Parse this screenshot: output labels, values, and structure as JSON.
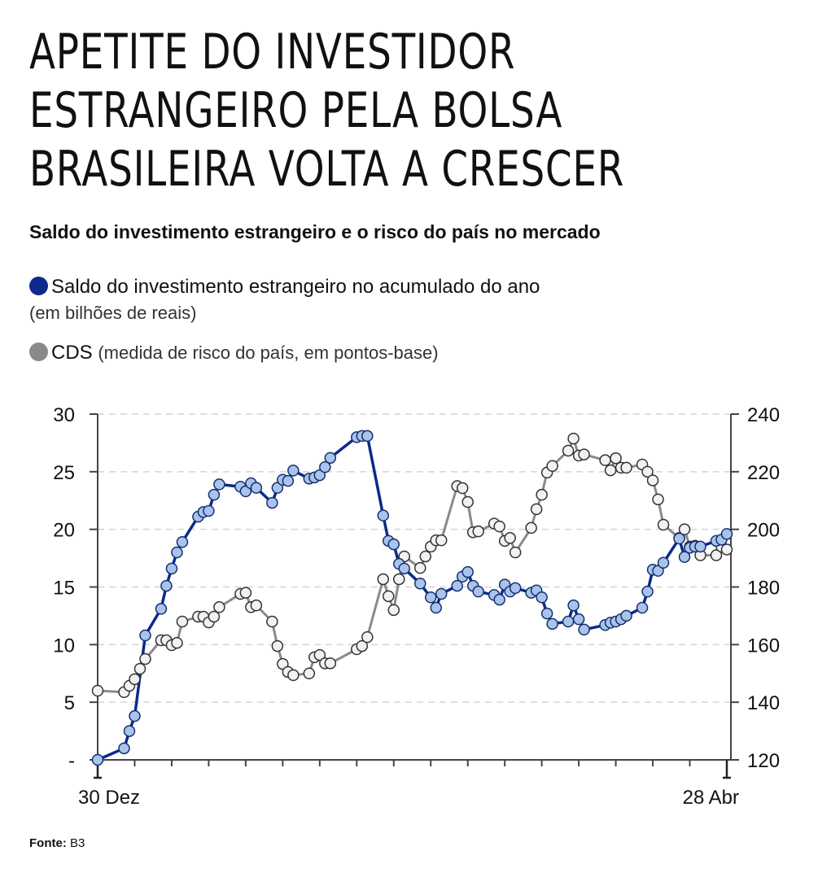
{
  "header": {
    "title_lines": [
      "APETITE DO INVESTIDOR",
      "ESTRANGEIRO PELA BOLSA",
      "BRASILEIRA VOLTA A CRESCER"
    ],
    "subtitle": "Saldo do investimento estrangeiro e o risco do país no mercado"
  },
  "legend": {
    "saldo_label": "Saldo do investimento estrangeiro no acumulado do ano",
    "saldo_unit": "(em bilhões de reais)",
    "cds_label": "CDS",
    "cds_desc": "(medida de risco do país, em pontos-base)"
  },
  "footer": {
    "source_label": "Fonte:",
    "source_value": "B3"
  },
  "colors": {
    "saldo_line": "#0b2a8c",
    "saldo_marker": "#a9c3ec",
    "cds_line": "#8a8a8a",
    "cds_marker": "#f2f2f2",
    "legend_saldo": "#0b2a8c",
    "legend_cds": "#8a8a8a"
  },
  "chart_data": {
    "type": "line",
    "title": "Saldo do investimento estrangeiro e o risco do país no mercado",
    "x_unit": "days since 30 Dez",
    "xlim": [
      0,
      119
    ],
    "x_tick_labels": [
      "30 Dez",
      "28 Abr"
    ],
    "y_left": {
      "ticks": [
        0,
        5,
        10,
        15,
        20,
        25,
        30
      ],
      "tick_labels": [
        "-",
        "5",
        "10",
        "15",
        "20",
        "25",
        "30"
      ],
      "lim": [
        0,
        30
      ]
    },
    "y_right": {
      "ticks": [
        120,
        140,
        160,
        180,
        200,
        220,
        240
      ],
      "tick_labels": [
        "120",
        "140",
        "160",
        "180",
        "200",
        "220",
        "240"
      ],
      "lim": [
        120,
        240
      ]
    },
    "grid": true,
    "series": [
      {
        "name": "Saldo do investimento estrangeiro",
        "axis": "left",
        "x": [
          0,
          5,
          6,
          7,
          9,
          12,
          13,
          14,
          15,
          16,
          19,
          20,
          21,
          22,
          23,
          27,
          28,
          29,
          30,
          33,
          34,
          35,
          36,
          37,
          40,
          41,
          42,
          43,
          44,
          49,
          50,
          51,
          54,
          55,
          56,
          57,
          58,
          61,
          63,
          64,
          65,
          68,
          69,
          70,
          71,
          72,
          75,
          76,
          77,
          78,
          79,
          82,
          83,
          84,
          85,
          86,
          89,
          90,
          91,
          92,
          96,
          97,
          98,
          99,
          100,
          103,
          104,
          105,
          106,
          107,
          110,
          111,
          112,
          113,
          114,
          117,
          118,
          119
        ],
        "y": [
          0,
          1,
          2.5,
          3.8,
          10.8,
          13.1,
          15.1,
          16.6,
          18,
          18.9,
          21.1,
          21.5,
          21.6,
          23,
          23.9,
          23.7,
          23.3,
          24,
          23.6,
          22.3,
          23.6,
          24.3,
          24.2,
          25.1,
          24.4,
          24.5,
          24.7,
          25.4,
          26.2,
          28,
          28.1,
          28.1,
          21.2,
          19,
          18.7,
          17,
          16.6,
          15.3,
          14.1,
          13.2,
          14.4,
          15.1,
          15.9,
          16.3,
          15.1,
          14.6,
          14.3,
          13.9,
          15.2,
          14.6,
          14.9,
          14.5,
          14.7,
          14.1,
          12.7,
          11.8,
          12,
          13.4,
          12.2,
          11.3,
          11.7,
          11.9,
          12,
          12.2,
          12.5,
          13.2,
          14.6,
          16.5,
          16.4,
          17.1,
          19.2,
          17.6,
          18.4,
          18.5,
          18.5,
          19,
          19.1,
          19.6
        ]
      },
      {
        "name": "CDS",
        "axis": "right",
        "x": [
          0,
          5,
          6,
          7,
          8,
          9,
          12,
          13,
          14,
          15,
          16,
          19,
          20,
          21,
          22,
          23,
          27,
          28,
          29,
          30,
          33,
          34,
          35,
          36,
          37,
          40,
          41,
          42,
          43,
          44,
          49,
          50,
          51,
          54,
          55,
          56,
          57,
          58,
          61,
          62,
          63,
          64,
          65,
          68,
          69,
          70,
          71,
          72,
          75,
          76,
          77,
          78,
          79,
          82,
          83,
          84,
          85,
          86,
          89,
          90,
          91,
          92,
          96,
          97,
          98,
          99,
          100,
          103,
          104,
          105,
          106,
          107,
          110,
          111,
          112,
          113,
          114,
          117,
          118,
          119
        ],
        "y": [
          144,
          143.5,
          145.7,
          148,
          151.6,
          155,
          161.5,
          161.5,
          159.8,
          160.6,
          168,
          169.7,
          169.7,
          167.7,
          169.7,
          173,
          177.6,
          178,
          173,
          173.6,
          168,
          159.5,
          153.3,
          150.5,
          149.4,
          150,
          155.6,
          156.4,
          153.5,
          153.5,
          158.4,
          159.5,
          162.6,
          182.7,
          176.8,
          172,
          182.7,
          190.6,
          186.6,
          190.6,
          194,
          196.2,
          196.2,
          215,
          214.3,
          209.5,
          199,
          199.3,
          202,
          201,
          196,
          197,
          192,
          200.5,
          207,
          212,
          219.7,
          222,
          227.3,
          231.5,
          225.6,
          226,
          224,
          220.5,
          224.7,
          221.4,
          221.4,
          222.5,
          220,
          217,
          210.4,
          201.6,
          197,
          200,
          194,
          194.3,
          191,
          191,
          194,
          193
        ]
      }
    ]
  }
}
